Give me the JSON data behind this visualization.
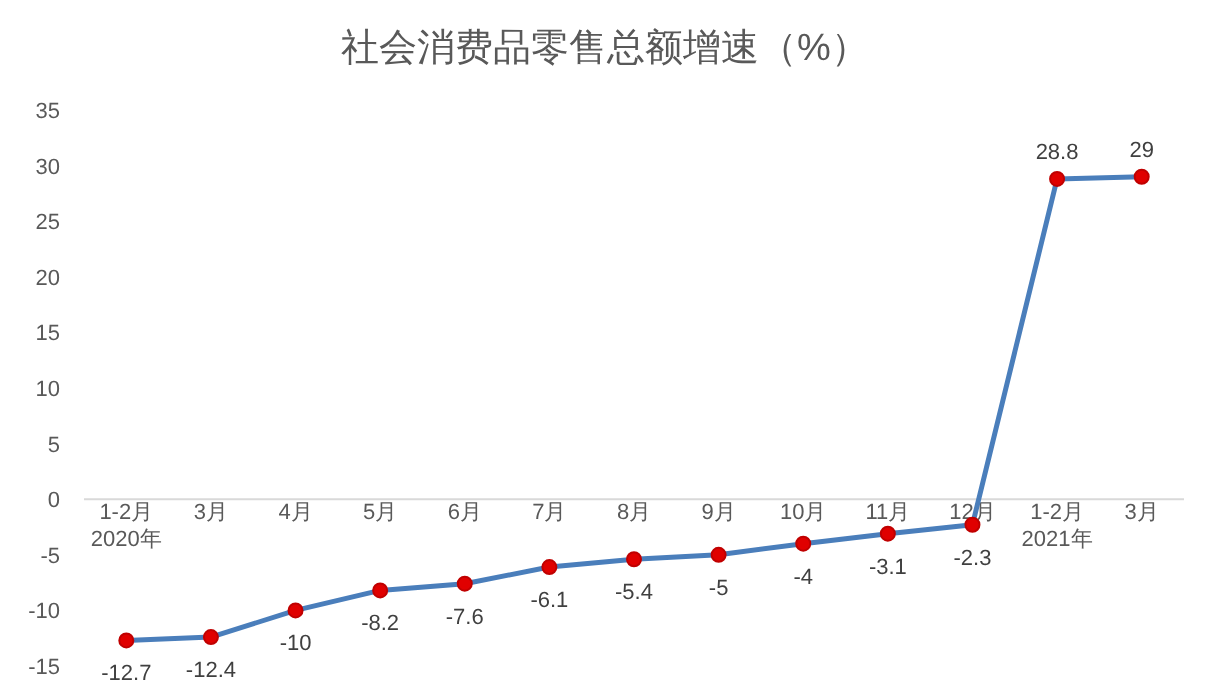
{
  "chart_data": {
    "type": "line",
    "title": "社会消费品零售总额增速（%）",
    "categories": [
      "1-2月\n2020年",
      "3月",
      "4月",
      "5月",
      "6月",
      "7月",
      "8月",
      "9月",
      "10月",
      "11月",
      "12月",
      "1-2月\n2021年",
      "3月"
    ],
    "series": [
      {
        "color": "#4a7ebb",
        "values": [
          -12.7,
          -12.4,
          -10,
          -8.2,
          -7.6,
          -6.1,
          -5.4,
          -5,
          -4,
          -3.1,
          -2.3,
          28.8,
          29
        ]
      }
    ],
    "ylim": [
      -15,
      35
    ],
    "yticks": [
      -15,
      -10,
      -5,
      0,
      5,
      10,
      15,
      20,
      25,
      30,
      35
    ],
    "marker": "circle",
    "line_style": "solid",
    "data_labels": true,
    "grid": false
  }
}
